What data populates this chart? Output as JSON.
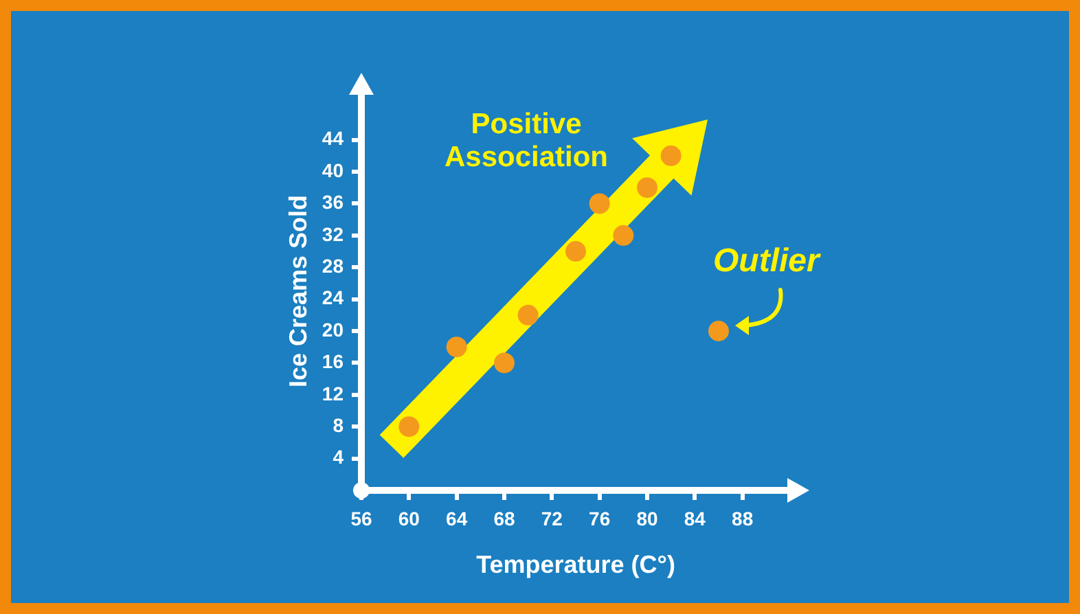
{
  "chart_data": {
    "type": "scatter",
    "xlabel": "Temperature (C°)",
    "ylabel": "Ice Creams Sold",
    "x": [
      60,
      64,
      68,
      70,
      74,
      76,
      78,
      80,
      82,
      86
    ],
    "values": [
      8,
      18,
      16,
      22,
      30,
      36,
      32,
      38,
      42,
      20
    ],
    "color": "#f39a1e",
    "xlim": [
      56,
      92
    ],
    "xticks": [
      56,
      60,
      64,
      68,
      72,
      76,
      80,
      84,
      88
    ],
    "ylim": [
      0,
      50
    ],
    "yticks": [
      4,
      8,
      12,
      16,
      20,
      24,
      28,
      32,
      36,
      40,
      44
    ],
    "annotations": [
      "Positive Association",
      {
        "text": "Outlier",
        "x": 86,
        "y": 20
      }
    ],
    "marker": "circle",
    "grid": false,
    "legend": false
  }
}
